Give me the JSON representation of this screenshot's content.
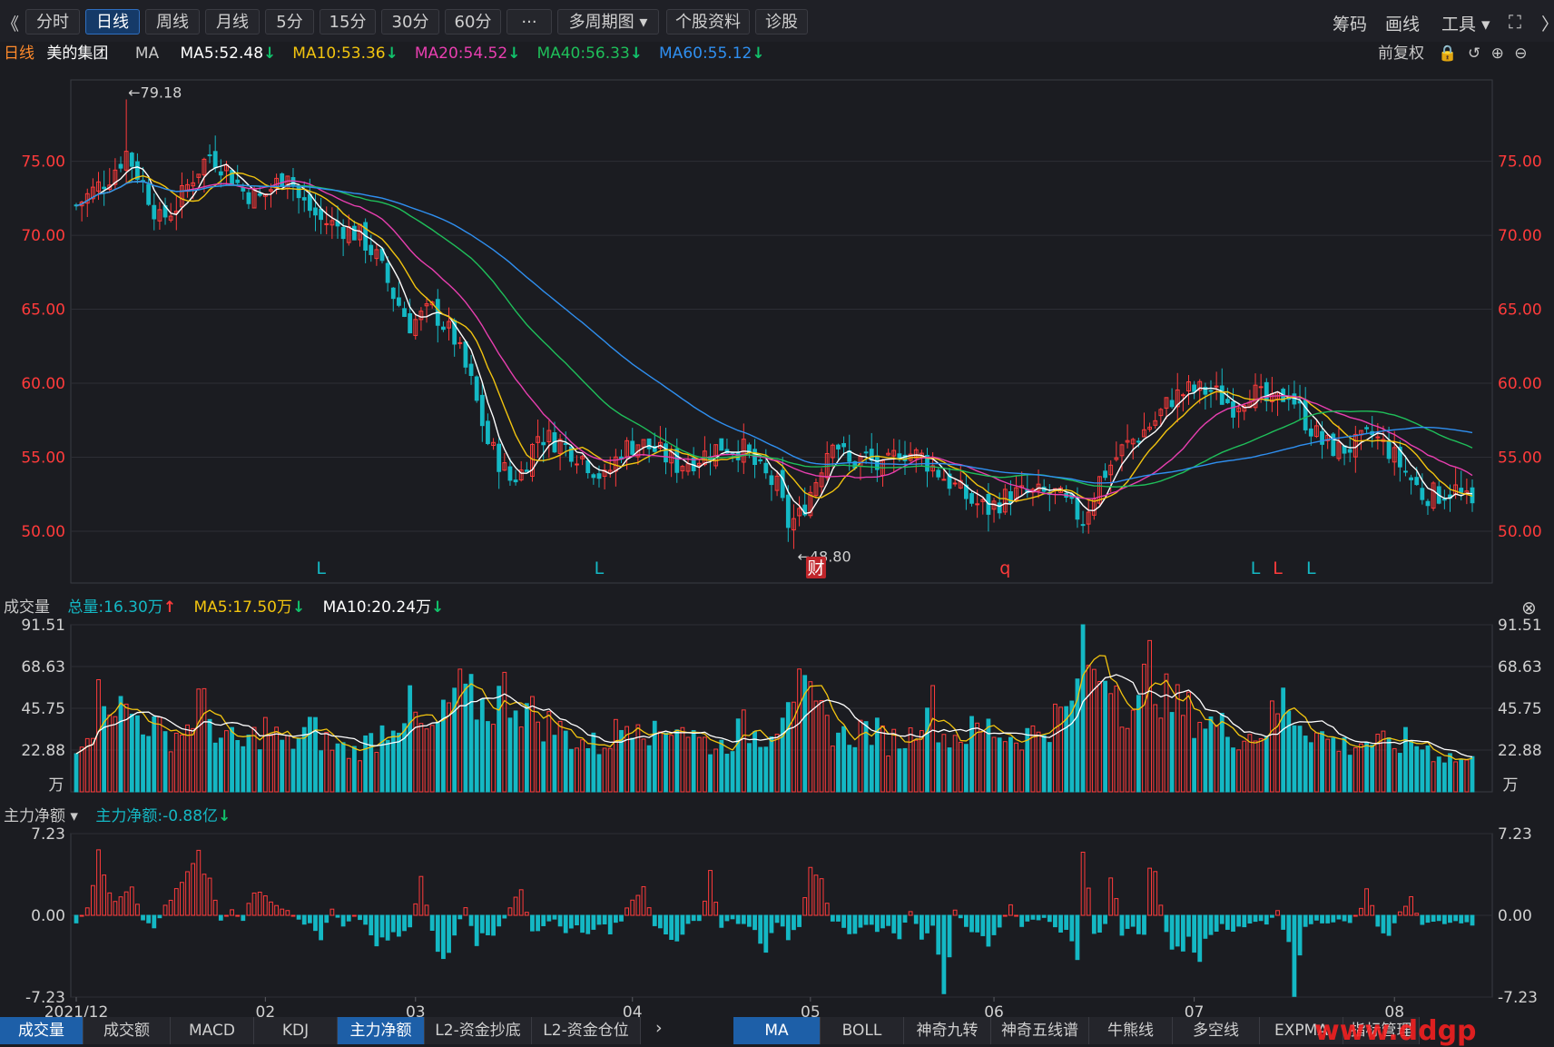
{
  "toolbar": {
    "back_label": "《",
    "buttons": [
      "分时",
      "日线",
      "周线",
      "月线",
      "5分",
      "15分",
      "30分",
      "60分",
      "···",
      "多周期图 ▾",
      "个股资料",
      "诊股"
    ],
    "active_index": 1,
    "right": [
      "筹码",
      "画线",
      "工具 ▾"
    ]
  },
  "header": {
    "period": "日线",
    "stock_name": "美的集团",
    "indicator": "MA",
    "ma": [
      {
        "label": "MA5:52.48",
        "color": "#ffffff"
      },
      {
        "label": "MA10:53.36",
        "color": "#f2c40f"
      },
      {
        "label": "MA20:54.52",
        "color": "#e83fb0"
      },
      {
        "label": "MA40:56.33",
        "color": "#1fbf5a"
      },
      {
        "label": "MA60:55.12",
        "color": "#2f8ff0"
      }
    ],
    "adjust": "前复权"
  },
  "volume_header": {
    "title": "成交量",
    "total": "总量:16.30万",
    "ma5": "MA5:17.50万",
    "ma10": "MA10:20.24万"
  },
  "flow_header": {
    "title": "主力净额 ▾",
    "value": "主力净额:-0.88亿"
  },
  "colors": {
    "up": "#ff3b3b",
    "down": "#14b8c4",
    "grid": "#2d2e35",
    "axis_text": "#ff3b3b",
    "text": "#c8c8c8"
  },
  "bottom_tabs_left": [
    "成交量",
    "成交额",
    "MACD",
    "KDJ",
    "主力净额",
    "L2-资金抄底",
    "L2-资金仓位"
  ],
  "bottom_tabs_left_active": 4,
  "bottom_tabs_right": [
    "MA",
    "BOLL",
    "神奇九转",
    "神奇五线谱",
    "牛熊线",
    "多空线",
    "EXPMA",
    "指标管理"
  ],
  "bottom_tabs_right_active": 0,
  "watermark": "www.ddgp",
  "chart_data": {
    "type": "candlestick",
    "price_axis": {
      "ticks": [
        "75.00",
        "70.00",
        "65.00",
        "60.00",
        "55.00",
        "50.00"
      ],
      "values": [
        75,
        70,
        65,
        60,
        55,
        50
      ],
      "ylim": [
        46.5,
        80.5
      ]
    },
    "volume_axis": {
      "ticks": [
        "91.51",
        "68.63",
        "45.75",
        "22.88",
        "万"
      ],
      "values": [
        91.51,
        68.63,
        45.75,
        22.88
      ],
      "ylim": [
        0,
        91.51
      ]
    },
    "flow_axis": {
      "ticks": [
        "7.23",
        "0.00",
        "-7.23"
      ],
      "values": [
        7.23,
        0,
        -7.23
      ],
      "ylim": [
        -7.23,
        7.23
      ]
    },
    "x_ticks": [
      {
        "label": "2021/12",
        "index": 0
      },
      {
        "label": "02",
        "index": 34
      },
      {
        "label": "03",
        "index": 61
      },
      {
        "label": "04",
        "index": 100
      },
      {
        "label": "05",
        "index": 132
      },
      {
        "label": "06",
        "index": 165
      },
      {
        "label": "07",
        "index": 201
      },
      {
        "label": "08",
        "index": 237
      }
    ],
    "count": 252,
    "high_label": {
      "text": "←79.18",
      "index": 9,
      "value": 79.18
    },
    "low_label": {
      "text": "←48.80",
      "index": 129,
      "value": 48.8
    },
    "event_marks": [
      {
        "text": "L",
        "index": 44,
        "color": "#14b8c4"
      },
      {
        "text": "L",
        "index": 94,
        "color": "#14b8c4"
      },
      {
        "text": "财",
        "index": 133,
        "color": "#ffffff",
        "bg": "#c0262b"
      },
      {
        "text": "q",
        "index": 167,
        "color": "#ff3b3b"
      },
      {
        "text": "L",
        "index": 212,
        "color": "#14b8c4"
      },
      {
        "text": "L",
        "index": 216,
        "color": "#ff3b3b"
      },
      {
        "text": "L",
        "index": 222,
        "color": "#14b8c4"
      }
    ],
    "close_anchors": [
      [
        0,
        72.0
      ],
      [
        3,
        73.0
      ],
      [
        6,
        74.0
      ],
      [
        9,
        75.6
      ],
      [
        12,
        73.5
      ],
      [
        15,
        71.0
      ],
      [
        18,
        72.0
      ],
      [
        21,
        74.0
      ],
      [
        24,
        75.5
      ],
      [
        27,
        74.5
      ],
      [
        30,
        73.0
      ],
      [
        33,
        72.5
      ],
      [
        36,
        73.5
      ],
      [
        38,
        74.5
      ],
      [
        40,
        72.5
      ],
      [
        44,
        71.0
      ],
      [
        48,
        70.5
      ],
      [
        51,
        70.0
      ],
      [
        54,
        68.5
      ],
      [
        57,
        66.0
      ],
      [
        60,
        64.0
      ],
      [
        64,
        65.0
      ],
      [
        68,
        63.0
      ],
      [
        71,
        60.0
      ],
      [
        74,
        56.0
      ],
      [
        78,
        53.5
      ],
      [
        80,
        54.0
      ],
      [
        83,
        56.5
      ],
      [
        87,
        56.0
      ],
      [
        91,
        55.0
      ],
      [
        95,
        53.5
      ],
      [
        98,
        55.5
      ],
      [
        101,
        56.0
      ],
      [
        104,
        55.5
      ],
      [
        108,
        54.5
      ],
      [
        112,
        55.0
      ],
      [
        116,
        55.8
      ],
      [
        120,
        55.5
      ],
      [
        123,
        54.0
      ],
      [
        126,
        53.0
      ],
      [
        128,
        50.5
      ],
      [
        130,
        51.0
      ],
      [
        133,
        53.5
      ],
      [
        136,
        56.5
      ],
      [
        139,
        54.5
      ],
      [
        142,
        55.0
      ],
      [
        145,
        54.0
      ],
      [
        148,
        55.5
      ],
      [
        152,
        55.0
      ],
      [
        155,
        54.0
      ],
      [
        158,
        53.0
      ],
      [
        161,
        52.0
      ],
      [
        164,
        51.5
      ],
      [
        168,
        52.5
      ],
      [
        172,
        52.5
      ],
      [
        176,
        52.5
      ],
      [
        179,
        51.5
      ],
      [
        181,
        50.8
      ],
      [
        184,
        53.5
      ],
      [
        188,
        55.5
      ],
      [
        191,
        56.5
      ],
      [
        194,
        57.5
      ],
      [
        197,
        59.0
      ],
      [
        200,
        59.5
      ],
      [
        204,
        59.5
      ],
      [
        208,
        58.5
      ],
      [
        211,
        59.5
      ],
      [
        215,
        58.5
      ],
      [
        218,
        59.5
      ],
      [
        221,
        57.5
      ],
      [
        224,
        56.0
      ],
      [
        227,
        55.5
      ],
      [
        230,
        55.8
      ],
      [
        233,
        56.5
      ],
      [
        236,
        55.5
      ],
      [
        239,
        54.0
      ],
      [
        242,
        52.5
      ],
      [
        245,
        52.5
      ],
      [
        248,
        52.8
      ],
      [
        251,
        51.6
      ]
    ],
    "volume_anchors": [
      [
        0,
        28
      ],
      [
        3,
        40
      ],
      [
        5,
        60
      ],
      [
        8,
        45
      ],
      [
        12,
        40
      ],
      [
        16,
        30
      ],
      [
        20,
        35
      ],
      [
        22,
        50
      ],
      [
        26,
        30
      ],
      [
        30,
        25
      ],
      [
        34,
        35
      ],
      [
        38,
        25
      ],
      [
        42,
        35
      ],
      [
        46,
        25
      ],
      [
        50,
        22
      ],
      [
        54,
        30
      ],
      [
        57,
        40
      ],
      [
        60,
        45
      ],
      [
        63,
        30
      ],
      [
        66,
        40
      ],
      [
        68,
        55
      ],
      [
        71,
        50
      ],
      [
        74,
        45
      ],
      [
        77,
        55
      ],
      [
        80,
        48
      ],
      [
        83,
        40
      ],
      [
        86,
        35
      ],
      [
        90,
        28
      ],
      [
        94,
        25
      ],
      [
        98,
        35
      ],
      [
        101,
        45
      ],
      [
        104,
        30
      ],
      [
        108,
        40
      ],
      [
        112,
        28
      ],
      [
        116,
        25
      ],
      [
        120,
        35
      ],
      [
        123,
        30
      ],
      [
        126,
        40
      ],
      [
        128,
        60
      ],
      [
        131,
        50
      ],
      [
        134,
        40
      ],
      [
        138,
        30
      ],
      [
        142,
        35
      ],
      [
        146,
        28
      ],
      [
        150,
        30
      ],
      [
        153,
        55
      ],
      [
        156,
        30
      ],
      [
        160,
        32
      ],
      [
        164,
        35
      ],
      [
        168,
        30
      ],
      [
        172,
        32
      ],
      [
        176,
        40
      ],
      [
        179,
        45
      ],
      [
        181,
        90
      ],
      [
        183,
        60
      ],
      [
        186,
        70
      ],
      [
        188,
        50
      ],
      [
        191,
        45
      ],
      [
        193,
        70
      ],
      [
        196,
        50
      ],
      [
        199,
        45
      ],
      [
        202,
        40
      ],
      [
        206,
        35
      ],
      [
        210,
        30
      ],
      [
        214,
        35
      ],
      [
        217,
        50
      ],
      [
        220,
        40
      ],
      [
        224,
        30
      ],
      [
        228,
        25
      ],
      [
        232,
        28
      ],
      [
        236,
        25
      ],
      [
        240,
        28
      ],
      [
        244,
        22
      ],
      [
        248,
        18
      ],
      [
        251,
        16.3
      ]
    ],
    "flow_anchors": [
      [
        0,
        -1
      ],
      [
        2,
        1
      ],
      [
        4,
        5.5
      ],
      [
        6,
        2
      ],
      [
        8,
        1.5
      ],
      [
        10,
        3
      ],
      [
        12,
        -0.5
      ],
      [
        14,
        -1.5
      ],
      [
        16,
        1
      ],
      [
        18,
        3
      ],
      [
        20,
        5
      ],
      [
        22,
        6.5
      ],
      [
        24,
        3
      ],
      [
        26,
        -0.5
      ],
      [
        28,
        0.5
      ],
      [
        30,
        -0.5
      ],
      [
        32,
        3
      ],
      [
        34,
        2
      ],
      [
        36,
        1
      ],
      [
        38,
        0.5
      ],
      [
        40,
        -0.5
      ],
      [
        42,
        -1
      ],
      [
        44,
        -2
      ],
      [
        46,
        0.5
      ],
      [
        48,
        -1
      ],
      [
        50,
        0
      ],
      [
        52,
        -1
      ],
      [
        54,
        -3
      ],
      [
        56,
        -2.5
      ],
      [
        58,
        -2
      ],
      [
        60,
        -1.5
      ],
      [
        62,
        4.5
      ],
      [
        64,
        -2
      ],
      [
        66,
        -4
      ],
      [
        68,
        -2
      ],
      [
        70,
        1
      ],
      [
        72,
        -3
      ],
      [
        74,
        -2
      ],
      [
        76,
        -1.5
      ],
      [
        78,
        1
      ],
      [
        80,
        2.5
      ],
      [
        82,
        -2
      ],
      [
        84,
        -1
      ],
      [
        86,
        -0.5
      ],
      [
        88,
        -1.5
      ],
      [
        90,
        -1
      ],
      [
        92,
        -2
      ],
      [
        94,
        -1
      ],
      [
        96,
        -1.5
      ],
      [
        98,
        -0.5
      ],
      [
        100,
        2
      ],
      [
        102,
        3
      ],
      [
        104,
        -1
      ],
      [
        106,
        -2
      ],
      [
        108,
        -3
      ],
      [
        110,
        -1
      ],
      [
        112,
        -0.5
      ],
      [
        114,
        4
      ],
      [
        116,
        -1
      ],
      [
        118,
        -0.5
      ],
      [
        120,
        -1
      ],
      [
        122,
        -2
      ],
      [
        124,
        -3
      ],
      [
        126,
        -1
      ],
      [
        128,
        -2
      ],
      [
        130,
        -1
      ],
      [
        132,
        5
      ],
      [
        134,
        3
      ],
      [
        136,
        -0.5
      ],
      [
        138,
        -1
      ],
      [
        140,
        -2
      ],
      [
        142,
        -1
      ],
      [
        144,
        -1.5
      ],
      [
        146,
        -1
      ],
      [
        148,
        -2
      ],
      [
        150,
        0.5
      ],
      [
        152,
        -2
      ],
      [
        154,
        -1
      ],
      [
        155,
        -4
      ],
      [
        156,
        -8
      ],
      [
        158,
        0.5
      ],
      [
        160,
        -1
      ],
      [
        162,
        -2
      ],
      [
        164,
        -4
      ],
      [
        166,
        -1
      ],
      [
        168,
        1
      ],
      [
        170,
        -1
      ],
      [
        172,
        -0.5
      ],
      [
        174,
        -0.3
      ],
      [
        176,
        -1
      ],
      [
        178,
        -2
      ],
      [
        180,
        -4
      ],
      [
        181,
        7.23
      ],
      [
        183,
        -2
      ],
      [
        185,
        -1
      ],
      [
        186,
        5
      ],
      [
        188,
        -2
      ],
      [
        190,
        -1
      ],
      [
        192,
        -2
      ],
      [
        193,
        6.5
      ],
      [
        196,
        -2
      ],
      [
        198,
        -4
      ],
      [
        200,
        -3
      ],
      [
        202,
        -4.5
      ],
      [
        204,
        -2
      ],
      [
        206,
        -1
      ],
      [
        208,
        -2
      ],
      [
        210,
        -1
      ],
      [
        212,
        -0.5
      ],
      [
        214,
        -1
      ],
      [
        216,
        0.5
      ],
      [
        218,
        -3
      ],
      [
        219,
        -8
      ],
      [
        221,
        -1
      ],
      [
        223,
        -0.5
      ],
      [
        225,
        -0.8
      ],
      [
        227,
        -0.5
      ],
      [
        229,
        -1
      ],
      [
        231,
        1
      ],
      [
        232,
        3
      ],
      [
        234,
        -1
      ],
      [
        236,
        -2
      ],
      [
        238,
        0.5
      ],
      [
        240,
        1.5
      ],
      [
        242,
        -1
      ],
      [
        244,
        -0.5
      ],
      [
        246,
        -1
      ],
      [
        248,
        -0.5
      ],
      [
        251,
        -0.88
      ]
    ]
  }
}
